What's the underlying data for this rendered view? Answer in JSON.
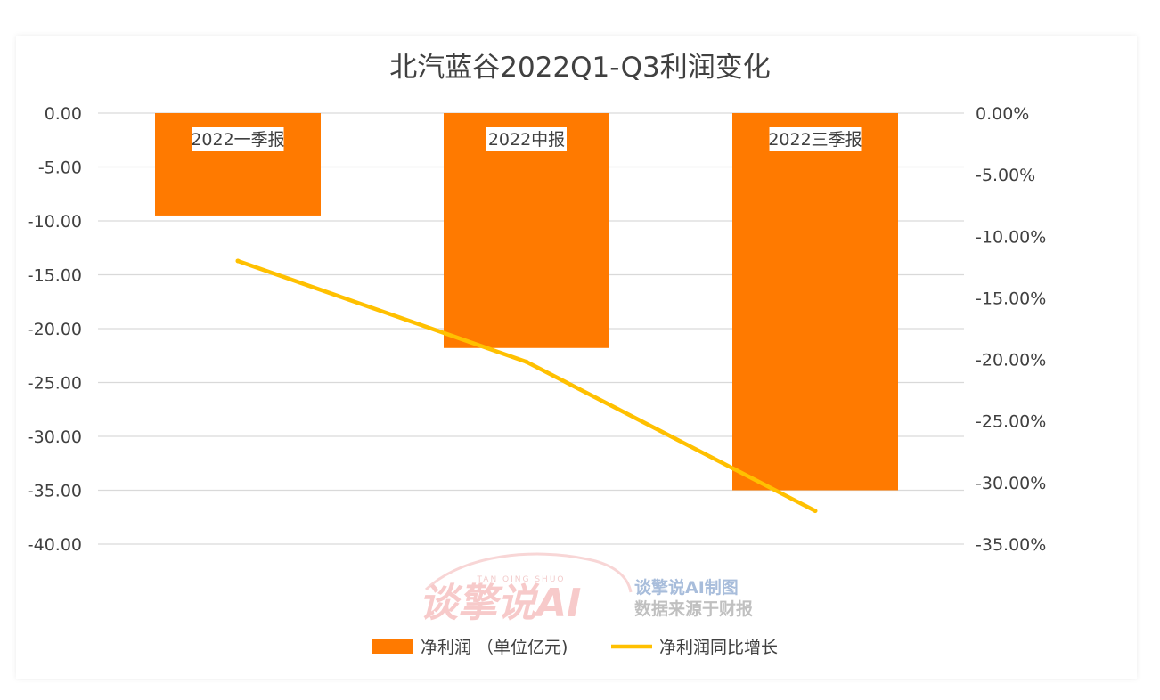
{
  "chart_data": {
    "type": "bar",
    "title": "北汽蓝谷2022Q1-Q3利润变化",
    "categories": [
      "2022一季报",
      "2022中报",
      "2022三季报"
    ],
    "series": [
      {
        "name": "净利润 （单位亿元)",
        "kind": "bar",
        "axis": "left",
        "color": "#FF7A00",
        "values": [
          -9.5,
          -21.8,
          -35.0
        ]
      },
      {
        "name": "净利润同比增长",
        "kind": "line",
        "axis": "right",
        "color": "#FFC000",
        "values": [
          -12.0,
          -20.2,
          -32.3
        ]
      }
    ],
    "y_left": {
      "min": -40,
      "max": 0,
      "ticks": [
        "0.00",
        "-5.00",
        "-10.00",
        "-15.00",
        "-20.00",
        "-25.00",
        "-30.00",
        "-35.00",
        "-40.00"
      ]
    },
    "y_right": {
      "min": -35,
      "max": 0,
      "ticks": [
        "0.00%",
        "-5.00%",
        "-10.00%",
        "-15.00%",
        "-20.00%",
        "-25.00%",
        "-30.00%",
        "-35.00%"
      ]
    },
    "grid": true,
    "legend_position": "bottom"
  },
  "watermark": {
    "logo_text": "谈擎说AI",
    "small_text": "TAN QING SHUO",
    "line1": "谈擎说AI制图",
    "line2": "数据来源于财报"
  }
}
